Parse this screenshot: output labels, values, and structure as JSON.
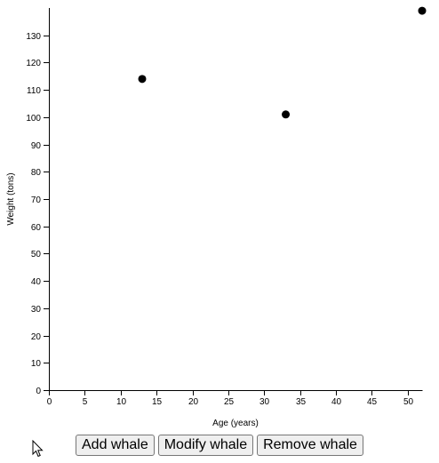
{
  "chart_data": {
    "type": "scatter",
    "title": "",
    "xlabel": "Age (years)",
    "ylabel": "Weight (tons)",
    "xlim": [
      0,
      52
    ],
    "ylim": [
      0,
      140
    ],
    "x_ticks": [
      0,
      5,
      10,
      15,
      20,
      25,
      30,
      35,
      40,
      45,
      50
    ],
    "y_ticks": [
      0,
      10,
      20,
      30,
      40,
      50,
      60,
      70,
      80,
      90,
      100,
      110,
      120,
      130
    ],
    "grid": false,
    "points": [
      {
        "x": 13,
        "y": 114
      },
      {
        "x": 33,
        "y": 101
      },
      {
        "x": 52,
        "y": 139
      }
    ],
    "point_color": "#000000"
  },
  "controls": {
    "add_label": "Add whale",
    "modify_label": "Modify whale",
    "remove_label": "Remove whale"
  },
  "cursor": {
    "icon": "arrow-pointer-icon"
  }
}
